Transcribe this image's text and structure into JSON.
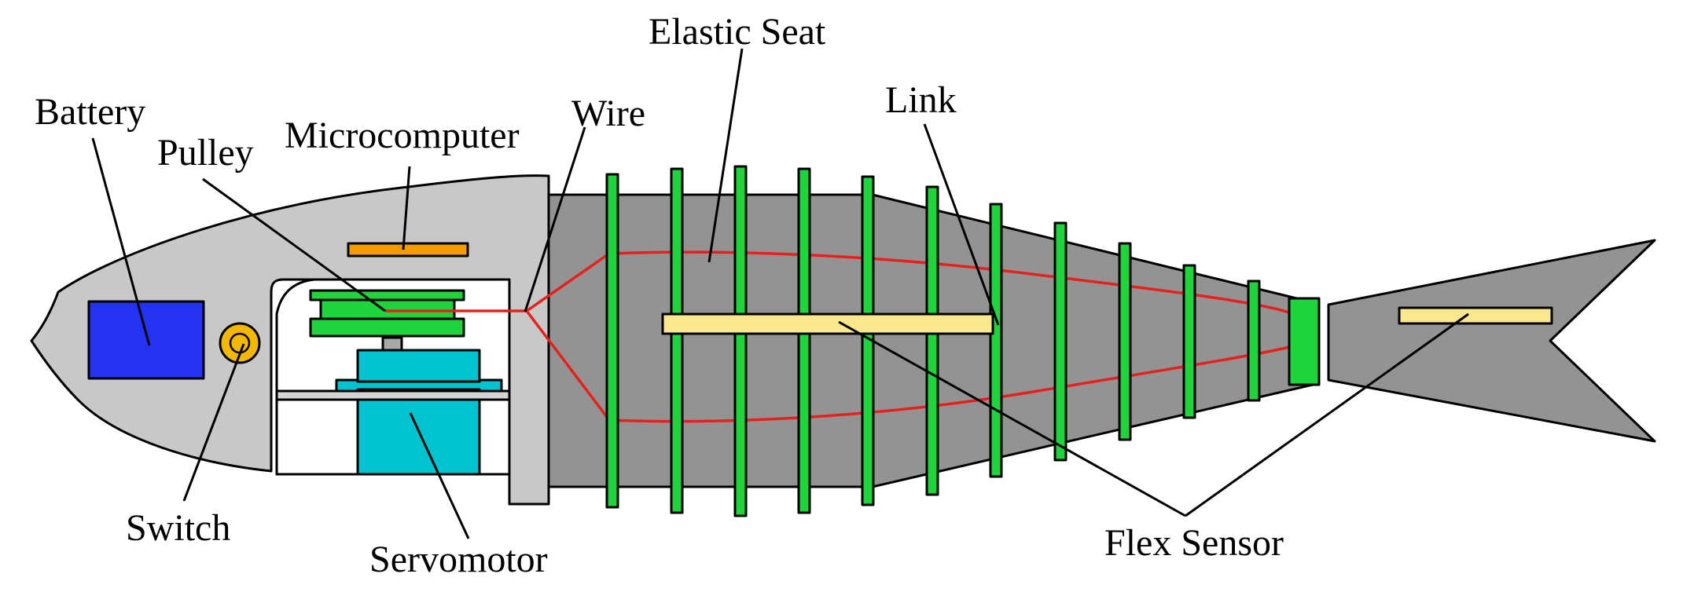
{
  "labels": {
    "battery": "Battery",
    "pulley": "Pulley",
    "microcomputer": "Microcomputer",
    "wire": "Wire",
    "elastic_seat": "Elastic Seat",
    "link": "Link",
    "switch": "Switch",
    "servomotor": "Servomotor",
    "flex_sensor": "Flex Sensor"
  },
  "colors": {
    "head": "#c8c8c8",
    "body": "#939393",
    "link_plates": "#1fd43d",
    "battery": "#2433f2",
    "switch": "#f5b800",
    "microcomputer": "#f59b00",
    "servomotor": "#00c3d0",
    "flex_sensor": "#fae88f",
    "wire": "#e8201c"
  }
}
